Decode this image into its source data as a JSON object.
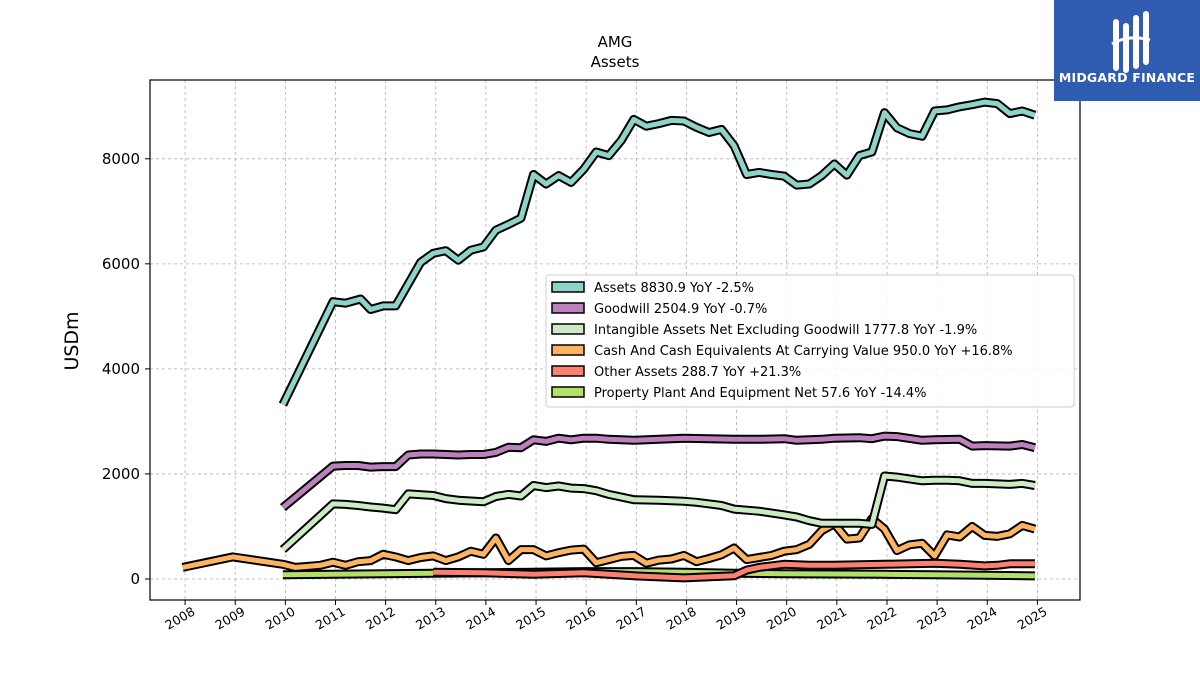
{
  "brand": {
    "name": "MIDGARD FINANCE",
    "color": "#2f5bb0"
  },
  "chart_data": {
    "type": "line",
    "title": "AMG",
    "subtitle": "Assets",
    "ylabel": "USDm",
    "xlabel": "",
    "xlim": [
      2007.3,
      2025.85
    ],
    "ylim": [
      -400,
      9500
    ],
    "yticks": [
      0,
      2000,
      4000,
      6000,
      8000
    ],
    "xticks": [
      "2008",
      "2009",
      "2010",
      "2011",
      "2012",
      "2013",
      "2014",
      "2015",
      "2016",
      "2017",
      "2018",
      "2019",
      "2020",
      "2021",
      "2022",
      "2023",
      "2024",
      "2025"
    ],
    "grid": true,
    "legend_position": "center-right",
    "series": [
      {
        "name": "Assets",
        "legend": "Assets  8830.9 YoY -2.5%",
        "color": "#8dd3c7",
        "points": [
          [
            2009.95,
            3320
          ],
          [
            2010.95,
            5280
          ],
          [
            2011.2,
            5250
          ],
          [
            2011.5,
            5330
          ],
          [
            2011.7,
            5130
          ],
          [
            2011.95,
            5200
          ],
          [
            2012.2,
            5200
          ],
          [
            2012.7,
            6030
          ],
          [
            2012.95,
            6200
          ],
          [
            2013.2,
            6250
          ],
          [
            2013.45,
            6070
          ],
          [
            2013.7,
            6260
          ],
          [
            2013.95,
            6320
          ],
          [
            2014.2,
            6640
          ],
          [
            2014.45,
            6750
          ],
          [
            2014.7,
            6870
          ],
          [
            2014.95,
            7700
          ],
          [
            2015.2,
            7520
          ],
          [
            2015.45,
            7680
          ],
          [
            2015.7,
            7550
          ],
          [
            2015.95,
            7800
          ],
          [
            2016.2,
            8130
          ],
          [
            2016.45,
            8060
          ],
          [
            2016.7,
            8350
          ],
          [
            2016.95,
            8750
          ],
          [
            2017.2,
            8620
          ],
          [
            2017.45,
            8670
          ],
          [
            2017.7,
            8730
          ],
          [
            2017.95,
            8720
          ],
          [
            2018.2,
            8600
          ],
          [
            2018.45,
            8500
          ],
          [
            2018.7,
            8560
          ],
          [
            2018.95,
            8250
          ],
          [
            2019.2,
            7700
          ],
          [
            2019.45,
            7740
          ],
          [
            2019.7,
            7700
          ],
          [
            2019.95,
            7670
          ],
          [
            2020.2,
            7500
          ],
          [
            2020.45,
            7520
          ],
          [
            2020.7,
            7680
          ],
          [
            2020.95,
            7900
          ],
          [
            2021.2,
            7690
          ],
          [
            2021.45,
            8060
          ],
          [
            2021.7,
            8130
          ],
          [
            2021.95,
            8880
          ],
          [
            2022.2,
            8590
          ],
          [
            2022.45,
            8480
          ],
          [
            2022.7,
            8430
          ],
          [
            2022.95,
            8910
          ],
          [
            2023.2,
            8930
          ],
          [
            2023.45,
            8990
          ],
          [
            2023.7,
            9030
          ],
          [
            2023.95,
            9080
          ],
          [
            2024.2,
            9050
          ],
          [
            2024.45,
            8860
          ],
          [
            2024.7,
            8910
          ],
          [
            2024.95,
            8830
          ]
        ]
      },
      {
        "name": "Goodwill",
        "legend": "Goodwill  2504.9 YoY -0.7%",
        "color": "#bc80bd",
        "points": [
          [
            2009.95,
            1360
          ],
          [
            2010.95,
            2150
          ],
          [
            2011.2,
            2160
          ],
          [
            2011.45,
            2160
          ],
          [
            2011.7,
            2130
          ],
          [
            2011.95,
            2140
          ],
          [
            2012.2,
            2140
          ],
          [
            2012.45,
            2360
          ],
          [
            2012.7,
            2380
          ],
          [
            2012.95,
            2380
          ],
          [
            2013.2,
            2370
          ],
          [
            2013.45,
            2360
          ],
          [
            2013.7,
            2370
          ],
          [
            2013.95,
            2370
          ],
          [
            2014.2,
            2410
          ],
          [
            2014.45,
            2510
          ],
          [
            2014.7,
            2500
          ],
          [
            2014.95,
            2650
          ],
          [
            2015.2,
            2620
          ],
          [
            2015.45,
            2680
          ],
          [
            2015.7,
            2650
          ],
          [
            2015.95,
            2680
          ],
          [
            2016.2,
            2680
          ],
          [
            2016.45,
            2660
          ],
          [
            2016.95,
            2640
          ],
          [
            2017.45,
            2660
          ],
          [
            2017.95,
            2680
          ],
          [
            2018.45,
            2670
          ],
          [
            2018.95,
            2660
          ],
          [
            2019.45,
            2660
          ],
          [
            2019.95,
            2670
          ],
          [
            2020.2,
            2640
          ],
          [
            2020.7,
            2660
          ],
          [
            2020.95,
            2680
          ],
          [
            2021.45,
            2690
          ],
          [
            2021.7,
            2670
          ],
          [
            2021.95,
            2720
          ],
          [
            2022.2,
            2710
          ],
          [
            2022.7,
            2640
          ],
          [
            2022.95,
            2650
          ],
          [
            2023.45,
            2660
          ],
          [
            2023.7,
            2530
          ],
          [
            2023.95,
            2540
          ],
          [
            2024.45,
            2530
          ],
          [
            2024.7,
            2560
          ],
          [
            2024.95,
            2500
          ]
        ]
      },
      {
        "name": "Intangible Assets Net Excluding Goodwill",
        "legend": "Intangible Assets Net Excluding Goodwill  1777.8 YoY -1.9%",
        "color": "#ccebc5",
        "points": [
          [
            2009.95,
            560
          ],
          [
            2010.95,
            1430
          ],
          [
            2011.2,
            1420
          ],
          [
            2011.45,
            1400
          ],
          [
            2011.7,
            1370
          ],
          [
            2011.95,
            1350
          ],
          [
            2012.2,
            1320
          ],
          [
            2012.45,
            1620
          ],
          [
            2012.95,
            1590
          ],
          [
            2013.2,
            1530
          ],
          [
            2013.45,
            1500
          ],
          [
            2013.95,
            1470
          ],
          [
            2014.2,
            1570
          ],
          [
            2014.45,
            1610
          ],
          [
            2014.7,
            1580
          ],
          [
            2014.95,
            1780
          ],
          [
            2015.2,
            1740
          ],
          [
            2015.45,
            1770
          ],
          [
            2015.7,
            1730
          ],
          [
            2015.95,
            1720
          ],
          [
            2016.2,
            1680
          ],
          [
            2016.45,
            1610
          ],
          [
            2016.95,
            1510
          ],
          [
            2017.45,
            1500
          ],
          [
            2017.95,
            1480
          ],
          [
            2018.2,
            1460
          ],
          [
            2018.7,
            1400
          ],
          [
            2018.95,
            1330
          ],
          [
            2019.45,
            1290
          ],
          [
            2019.95,
            1220
          ],
          [
            2020.2,
            1180
          ],
          [
            2020.45,
            1110
          ],
          [
            2020.7,
            1060
          ],
          [
            2020.95,
            1060
          ],
          [
            2021.45,
            1060
          ],
          [
            2021.7,
            1040
          ],
          [
            2021.95,
            1960
          ],
          [
            2022.2,
            1940
          ],
          [
            2022.7,
            1870
          ],
          [
            2022.95,
            1880
          ],
          [
            2023.2,
            1880
          ],
          [
            2023.45,
            1870
          ],
          [
            2023.7,
            1820
          ],
          [
            2023.95,
            1820
          ],
          [
            2024.45,
            1800
          ],
          [
            2024.7,
            1820
          ],
          [
            2024.95,
            1780
          ]
        ]
      },
      {
        "name": "Cash And Cash Equivalents At Carrying Value",
        "legend": "Cash And Cash Equivalents At Carrying Value  950.0 YoY +16.8%",
        "color": "#fdb462",
        "points": [
          [
            2007.95,
            220
          ],
          [
            2008.95,
            420
          ],
          [
            2009.95,
            280
          ],
          [
            2010.2,
            220
          ],
          [
            2010.45,
            240
          ],
          [
            2010.7,
            260
          ],
          [
            2010.95,
            320
          ],
          [
            2011.2,
            260
          ],
          [
            2011.45,
            330
          ],
          [
            2011.7,
            350
          ],
          [
            2011.95,
            470
          ],
          [
            2012.2,
            420
          ],
          [
            2012.45,
            350
          ],
          [
            2012.7,
            410
          ],
          [
            2012.95,
            440
          ],
          [
            2013.2,
            350
          ],
          [
            2013.45,
            420
          ],
          [
            2013.7,
            530
          ],
          [
            2013.95,
            470
          ],
          [
            2014.2,
            780
          ],
          [
            2014.45,
            350
          ],
          [
            2014.7,
            560
          ],
          [
            2014.95,
            560
          ],
          [
            2015.2,
            440
          ],
          [
            2015.45,
            500
          ],
          [
            2015.7,
            550
          ],
          [
            2015.95,
            570
          ],
          [
            2016.2,
            310
          ],
          [
            2016.45,
            370
          ],
          [
            2016.7,
            430
          ],
          [
            2016.95,
            450
          ],
          [
            2017.2,
            300
          ],
          [
            2017.45,
            360
          ],
          [
            2017.7,
            380
          ],
          [
            2017.95,
            450
          ],
          [
            2018.2,
            330
          ],
          [
            2018.45,
            390
          ],
          [
            2018.7,
            460
          ],
          [
            2018.95,
            590
          ],
          [
            2019.2,
            370
          ],
          [
            2019.45,
            410
          ],
          [
            2019.7,
            450
          ],
          [
            2019.95,
            530
          ],
          [
            2020.2,
            560
          ],
          [
            2020.45,
            660
          ],
          [
            2020.7,
            920
          ],
          [
            2020.95,
            1050
          ],
          [
            2021.2,
            760
          ],
          [
            2021.45,
            780
          ],
          [
            2021.7,
            1150
          ],
          [
            2021.95,
            950
          ],
          [
            2022.2,
            540
          ],
          [
            2022.45,
            650
          ],
          [
            2022.7,
            680
          ],
          [
            2022.95,
            440
          ],
          [
            2023.2,
            840
          ],
          [
            2023.45,
            800
          ],
          [
            2023.7,
            1000
          ],
          [
            2023.95,
            830
          ],
          [
            2024.2,
            810
          ],
          [
            2024.45,
            860
          ],
          [
            2024.7,
            1020
          ],
          [
            2024.95,
            950
          ]
        ]
      },
      {
        "name": "Other Assets",
        "legend": "Other Assets  288.7 YoY +21.3%",
        "color": "#fb8072",
        "points": [
          [
            2012.95,
            130
          ],
          [
            2013.95,
            120
          ],
          [
            2014.95,
            90
          ],
          [
            2015.95,
            120
          ],
          [
            2016.95,
            60
          ],
          [
            2017.95,
            20
          ],
          [
            2018.95,
            60
          ],
          [
            2019.2,
            170
          ],
          [
            2019.45,
            220
          ],
          [
            2019.95,
            280
          ],
          [
            2020.45,
            260
          ],
          [
            2020.95,
            260
          ],
          [
            2021.95,
            280
          ],
          [
            2022.95,
            300
          ],
          [
            2023.45,
            280
          ],
          [
            2023.95,
            250
          ],
          [
            2024.2,
            260
          ],
          [
            2024.45,
            290
          ],
          [
            2024.95,
            290
          ]
        ]
      },
      {
        "name": "Property Plant And Equipment Net",
        "legend": "Property Plant And Equipment Net  57.6 YoY -14.4%",
        "color": "#b3de69",
        "points": [
          [
            2009.95,
            80
          ],
          [
            2010.95,
            90
          ],
          [
            2011.95,
            100
          ],
          [
            2012.95,
            110
          ],
          [
            2013.95,
            120
          ],
          [
            2014.95,
            130
          ],
          [
            2015.95,
            140
          ],
          [
            2016.95,
            140
          ],
          [
            2017.95,
            130
          ],
          [
            2018.95,
            110
          ],
          [
            2019.95,
            100
          ],
          [
            2020.95,
            95
          ],
          [
            2021.95,
            90
          ],
          [
            2022.95,
            80
          ],
          [
            2023.95,
            70
          ],
          [
            2024.95,
            58
          ]
        ]
      }
    ]
  }
}
